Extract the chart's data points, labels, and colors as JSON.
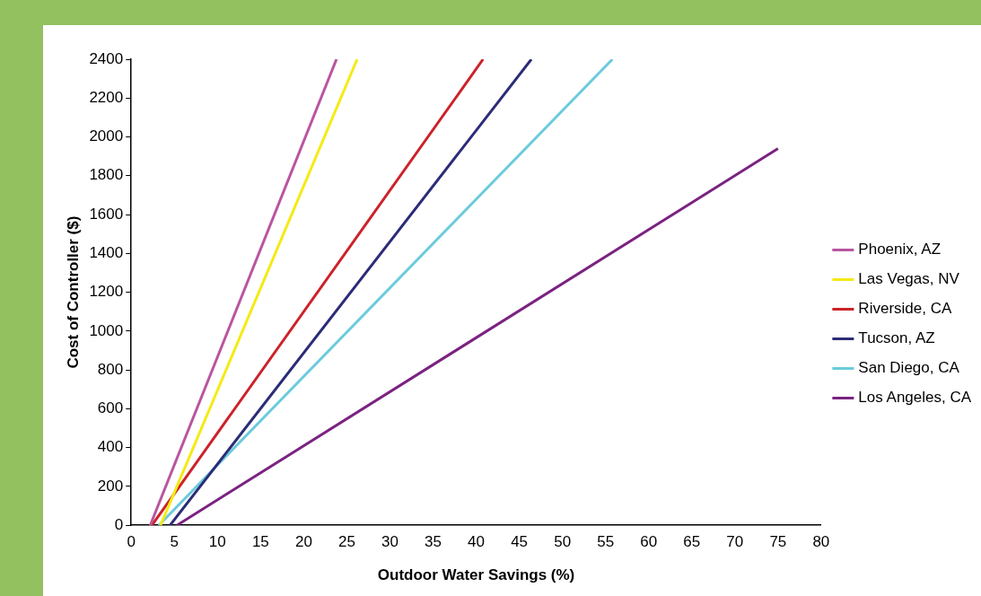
{
  "chart_data": {
    "type": "line",
    "xlabel": "Outdoor Water Savings (%)",
    "ylabel": "Cost of Controller ($)",
    "xlim": [
      0,
      80
    ],
    "xticks": [
      0,
      5,
      10,
      15,
      20,
      25,
      30,
      35,
      40,
      45,
      50,
      55,
      60,
      65,
      70,
      75,
      80
    ],
    "ylim": [
      0,
      2400
    ],
    "yticks": [
      0,
      200,
      400,
      600,
      800,
      1000,
      1200,
      1400,
      1600,
      1800,
      2000,
      2200,
      2400
    ],
    "grid": false,
    "legend": "right",
    "marker": "none",
    "line_style": "solid",
    "series": [
      {
        "name": "Phoenix, AZ",
        "color": "#b9559f",
        "x": [
          2.2,
          23.8
        ],
        "values": [
          0,
          2400
        ]
      },
      {
        "name": "Las Vegas, NV",
        "color": "#f5ea14",
        "x": [
          3.4,
          26.2
        ],
        "values": [
          0,
          2400
        ]
      },
      {
        "name": "Riverside, CA",
        "color": "#cc2229",
        "x": [
          2.4,
          40.8
        ],
        "values": [
          0,
          2400
        ]
      },
      {
        "name": "Tucson, AZ",
        "color": "#2b2c77",
        "x": [
          4.5,
          46.4
        ],
        "values": [
          0,
          2400
        ]
      },
      {
        "name": "San Diego, CA",
        "color": "#6bcbdc",
        "x": [
          3.2,
          55.8
        ],
        "values": [
          0,
          2400
        ]
      },
      {
        "name": "Los Angeles, CA",
        "color": "#7b2281",
        "x": [
          5.3,
          75
        ],
        "values": [
          0,
          1940
        ]
      }
    ]
  }
}
